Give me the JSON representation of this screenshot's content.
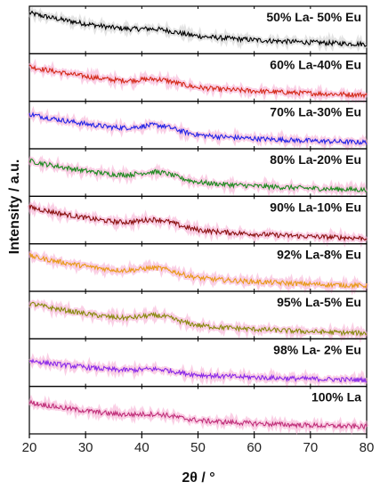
{
  "chart_data": {
    "type": "line",
    "xlabel": "2θ / °",
    "ylabel": "Intensity / a.u.",
    "xlim": [
      20,
      80
    ],
    "xticks": [
      20,
      30,
      40,
      50,
      60,
      70,
      80
    ],
    "x_range": [
      20,
      80
    ],
    "grid": false,
    "layout": "stacked-panels",
    "series": [
      {
        "name": "50% La- 50% Eu",
        "color": "#000000",
        "start": 0.95,
        "broad_peak_x": 43,
        "broad_peak_height": 0.15,
        "end": 0.18
      },
      {
        "name": "60% La-40% Eu",
        "color": "#d42a1a",
        "start": 0.8,
        "broad_peak_x": 43,
        "broad_peak_height": 0.22,
        "end": 0.1
      },
      {
        "name": "70% La-30% Eu",
        "color": "#2424e6",
        "start": 0.8,
        "broad_peak_x": 43,
        "broad_peak_height": 0.28,
        "end": 0.1
      },
      {
        "name": "80% La-20% Eu",
        "color": "#1f8a20",
        "start": 0.82,
        "broad_peak_x": 43,
        "broad_peak_height": 0.3,
        "end": 0.1
      },
      {
        "name": "90% La-10% Eu",
        "color": "#8a1010",
        "start": 0.85,
        "broad_peak_x": 43,
        "broad_peak_height": 0.3,
        "end": 0.08
      },
      {
        "name": "92% La-8% Eu",
        "color": "#e89a1a",
        "start": 0.82,
        "broad_peak_x": 43,
        "broad_peak_height": 0.28,
        "end": 0.08
      },
      {
        "name": "95% La-5% Eu",
        "color": "#8a8a10",
        "start": 0.82,
        "broad_peak_x": 43,
        "broad_peak_height": 0.28,
        "end": 0.08
      },
      {
        "name": "98% La- 2% Eu",
        "color": "#8a2ae8",
        "start": 0.58,
        "broad_peak_x": 43,
        "broad_peak_height": 0.15,
        "end": 0.1
      },
      {
        "name": "100% La",
        "color": "#c0307a",
        "start": 0.72,
        "broad_peak_x": 43,
        "broad_peak_height": 0.15,
        "end": 0.12
      }
    ]
  }
}
